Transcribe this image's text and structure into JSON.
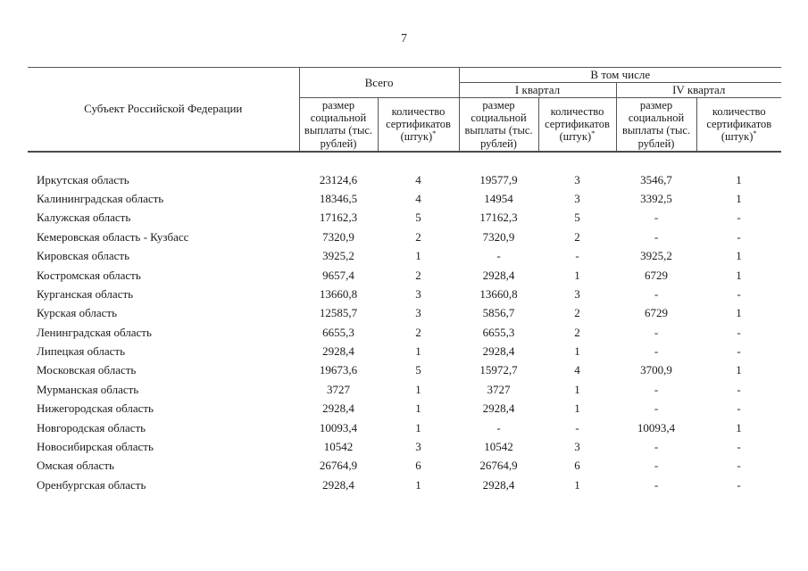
{
  "page": {
    "number": "7"
  },
  "table": {
    "header": {
      "subject": "Субъект Российской Федерации",
      "total": "Всего",
      "including": "В том числе",
      "q1": "I квартал",
      "q4": "IV квартал",
      "size_label": "размер социальной выплаты (тыс. рублей)",
      "cert_label": "количество сертификатов (штук)",
      "cert_footnote_mark": "*"
    },
    "columns_order": [
      "total_size",
      "total_certs",
      "q1_size",
      "q1_certs",
      "q4_size",
      "q4_certs"
    ],
    "rows": [
      {
        "region": "Иркутская область",
        "values": [
          "23124,6",
          "4",
          "19577,9",
          "3",
          "3546,7",
          "1"
        ]
      },
      {
        "region": "Калининградская область",
        "values": [
          "18346,5",
          "4",
          "14954",
          "3",
          "3392,5",
          "1"
        ]
      },
      {
        "region": "Калужская область",
        "values": [
          "17162,3",
          "5",
          "17162,3",
          "5",
          "-",
          "-"
        ]
      },
      {
        "region": "Кемеровская область - Кузбасс",
        "values": [
          "7320,9",
          "2",
          "7320,9",
          "2",
          "-",
          "-"
        ]
      },
      {
        "region": "Кировская область",
        "values": [
          "3925,2",
          "1",
          "-",
          "-",
          "3925,2",
          "1"
        ]
      },
      {
        "region": "Костромская область",
        "values": [
          "9657,4",
          "2",
          "2928,4",
          "1",
          "6729",
          "1"
        ]
      },
      {
        "region": "Курганская область",
        "values": [
          "13660,8",
          "3",
          "13660,8",
          "3",
          "-",
          "-"
        ]
      },
      {
        "region": "Курская область",
        "values": [
          "12585,7",
          "3",
          "5856,7",
          "2",
          "6729",
          "1"
        ]
      },
      {
        "region": "Ленинградская область",
        "values": [
          "6655,3",
          "2",
          "6655,3",
          "2",
          "-",
          "-"
        ]
      },
      {
        "region": "Липецкая область",
        "values": [
          "2928,4",
          "1",
          "2928,4",
          "1",
          "-",
          "-"
        ]
      },
      {
        "region": "Московская область",
        "values": [
          "19673,6",
          "5",
          "15972,7",
          "4",
          "3700,9",
          "1"
        ]
      },
      {
        "region": "Мурманская область",
        "values": [
          "3727",
          "1",
          "3727",
          "1",
          "-",
          "-"
        ]
      },
      {
        "region": "Нижегородская область",
        "values": [
          "2928,4",
          "1",
          "2928,4",
          "1",
          "-",
          "-"
        ]
      },
      {
        "region": "Новгородская область",
        "values": [
          "10093,4",
          "1",
          "-",
          "-",
          "10093,4",
          "1"
        ]
      },
      {
        "region": "Новосибирская область",
        "values": [
          "10542",
          "3",
          "10542",
          "3",
          "-",
          "-"
        ]
      },
      {
        "region": "Омская область",
        "values": [
          "26764,9",
          "6",
          "26764,9",
          "6",
          "-",
          "-"
        ]
      },
      {
        "region": "Оренбургская область",
        "values": [
          "2928,4",
          "1",
          "2928,4",
          "1",
          "-",
          "-"
        ]
      }
    ]
  }
}
